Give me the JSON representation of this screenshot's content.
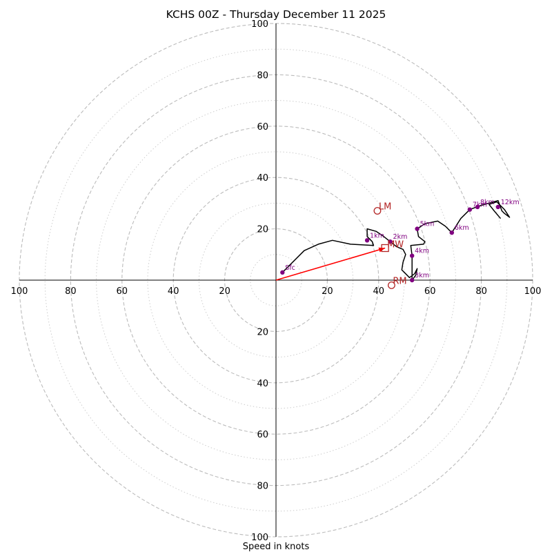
{
  "chart_data": {
    "type": "hodograph",
    "title": "KCHS 00Z - Thursday December 11 2025",
    "xlabel": "Speed in knots",
    "range": [
      -100,
      100
    ],
    "ring_major": [
      20,
      40,
      60,
      80,
      100
    ],
    "ring_minor": [
      10,
      30,
      50,
      70,
      90
    ],
    "x_ticks": [
      "100",
      "80",
      "60",
      "40",
      "20",
      "20",
      "40",
      "60",
      "80",
      "100"
    ],
    "x_tick_values": [
      -100,
      -80,
      -60,
      -40,
      -20,
      20,
      40,
      60,
      80,
      100
    ],
    "y_ticks": [
      "100",
      "80",
      "60",
      "40",
      "20",
      "20",
      "40",
      "60",
      "80",
      "100"
    ],
    "y_tick_values": [
      100,
      80,
      60,
      40,
      20,
      -20,
      -40,
      -60,
      -80,
      -100
    ],
    "colors": {
      "profile": "#000000",
      "heights": "#800080",
      "motion": "#b22222",
      "shear": "#ff0000",
      "ring": "#bbbbbb",
      "ring_minor": "#cccccc"
    },
    "profile": [
      [
        2.5,
        3
      ],
      [
        11,
        11.5
      ],
      [
        16.5,
        14
      ],
      [
        22,
        15.5
      ],
      [
        29,
        14
      ],
      [
        38,
        13.5
      ],
      [
        37.5,
        15
      ],
      [
        35.5,
        17
      ],
      [
        35.5,
        20
      ],
      [
        39,
        19
      ],
      [
        42,
        17
      ],
      [
        44.5,
        15
      ],
      [
        47,
        13
      ],
      [
        49.5,
        12
      ],
      [
        50.5,
        10
      ],
      [
        49.5,
        7
      ],
      [
        49,
        4
      ],
      [
        50,
        3
      ],
      [
        52,
        1
      ],
      [
        54,
        2.5
      ],
      [
        55,
        4.5
      ],
      [
        54.5,
        2
      ],
      [
        53,
        0
      ],
      [
        53,
        4
      ],
      [
        53,
        9.5
      ],
      [
        52.5,
        13.5
      ],
      [
        57.5,
        14
      ],
      [
        58,
        15
      ],
      [
        55.5,
        17
      ],
      [
        55,
        20
      ],
      [
        58,
        22
      ],
      [
        63,
        23
      ],
      [
        66,
        21
      ],
      [
        68.5,
        18.5
      ],
      [
        72,
        24
      ],
      [
        75.5,
        27.5
      ],
      [
        79.5,
        29
      ],
      [
        86.5,
        31
      ],
      [
        88,
        27
      ],
      [
        89,
        26
      ],
      [
        91,
        24.5
      ],
      [
        89,
        27.5
      ],
      [
        86,
        30.5
      ],
      [
        83,
        29.5
      ],
      [
        85,
        27
      ],
      [
        87.5,
        24
      ]
    ],
    "heights": [
      {
        "label": "Sfc",
        "u": 2.5,
        "v": 3
      },
      {
        "label": "1km",
        "u": 35.5,
        "v": 15.5
      },
      {
        "label": "2km",
        "u": 44.5,
        "v": 15
      },
      {
        "label": "3km",
        "u": 53,
        "v": 0
      },
      {
        "label": "4km",
        "u": 53,
        "v": 9.5
      },
      {
        "label": "5km",
        "u": 55,
        "v": 20
      },
      {
        "label": "6km",
        "u": 68.5,
        "v": 18.5
      },
      {
        "label": "7km",
        "u": 75.5,
        "v": 27.5
      },
      {
        "label": "8km",
        "u": 78.5,
        "v": 28.5
      },
      {
        "label": "12km",
        "u": 86.5,
        "v": 28.5
      }
    ],
    "storm_motion": [
      {
        "label": "LM",
        "u": 39.5,
        "v": 27
      },
      {
        "label": "RM",
        "u": 45,
        "v": -2
      }
    ],
    "mean_wind": {
      "label": "MW",
      "u": 42.5,
      "v": 12.5
    },
    "shear_vector": {
      "from": [
        0,
        0
      ],
      "to": [
        42.5,
        12.5
      ]
    }
  }
}
